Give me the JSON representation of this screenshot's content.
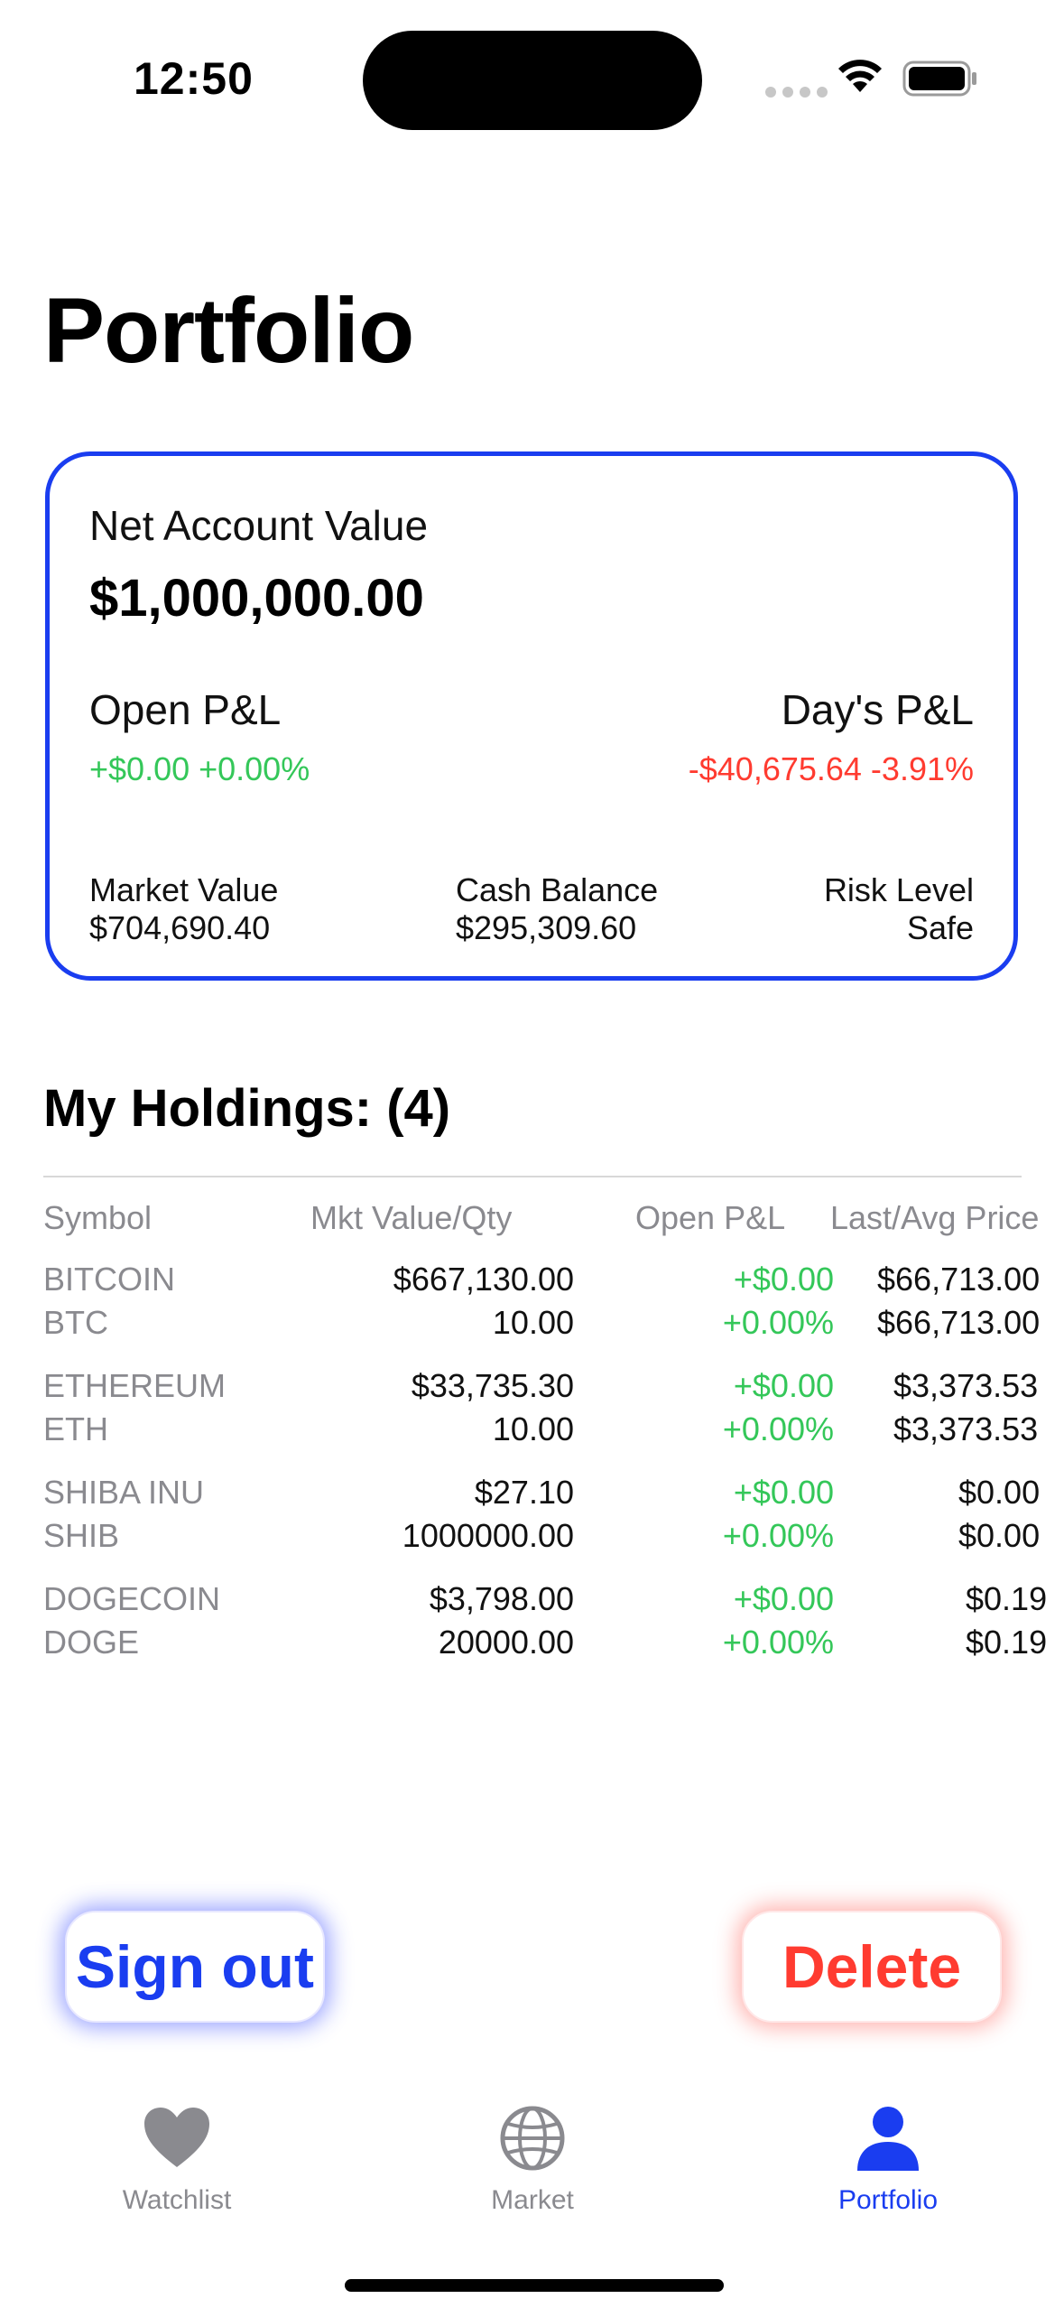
{
  "status_bar": {
    "time": "12:50"
  },
  "page": {
    "title": "Portfolio"
  },
  "account": {
    "net_label": "Net Account Value",
    "net_value": "$1,000,000.00",
    "open_pl_label": "Open P&L",
    "open_pl_value": "+$0.00 +0.00%",
    "days_pl_label": "Day's P&L",
    "days_pl_value": "-$40,675.64 -3.91%",
    "market_value_label": "Market Value",
    "market_value": "$704,690.40",
    "cash_balance_label": "Cash Balance",
    "cash_balance": "$295,309.60",
    "risk_level_label": "Risk Level",
    "risk_level": "Safe"
  },
  "holdings": {
    "title": "My Holdings: (4)",
    "columns": [
      "Symbol",
      "Mkt Value/Qty",
      "Open P&L",
      "Last/Avg Price"
    ],
    "rows": [
      {
        "name": "BITCOIN",
        "symbol": "BTC",
        "mkt_value": "$667,130.00",
        "qty": "10.00",
        "pl_value": "+$0.00",
        "pl_pct": "+0.00%",
        "last": "$66,713.00",
        "avg": "$66,713.00"
      },
      {
        "name": "ETHEREUM",
        "symbol": "ETH",
        "mkt_value": "$33,735.30",
        "qty": "10.00",
        "pl_value": "+$0.00",
        "pl_pct": "+0.00%",
        "last": "$3,373.53",
        "avg": "$3,373.53"
      },
      {
        "name": "SHIBA INU",
        "symbol": "SHIB",
        "mkt_value": "$27.10",
        "qty": "1000000.00",
        "pl_value": "+$0.00",
        "pl_pct": "+0.00%",
        "last": "$0.00",
        "avg": "$0.00"
      },
      {
        "name": "DOGECOIN",
        "symbol": "DOGE",
        "mkt_value": "$3,798.00",
        "qty": "20000.00",
        "pl_value": "+$0.00",
        "pl_pct": "+0.00%",
        "last": "$0.19",
        "avg": "$0.19"
      }
    ]
  },
  "buttons": {
    "sign_out": "Sign out",
    "delete": "Delete"
  },
  "tabs": [
    {
      "label": "Watchlist",
      "icon": "heart-icon",
      "active": false
    },
    {
      "label": "Market",
      "icon": "globe-icon",
      "active": false
    },
    {
      "label": "Portfolio",
      "icon": "person-icon",
      "active": true
    }
  ],
  "colors": {
    "accent": "#1a3df0",
    "positive": "#34c759",
    "negative": "#ff3b30",
    "muted": "#8a8a8f"
  }
}
